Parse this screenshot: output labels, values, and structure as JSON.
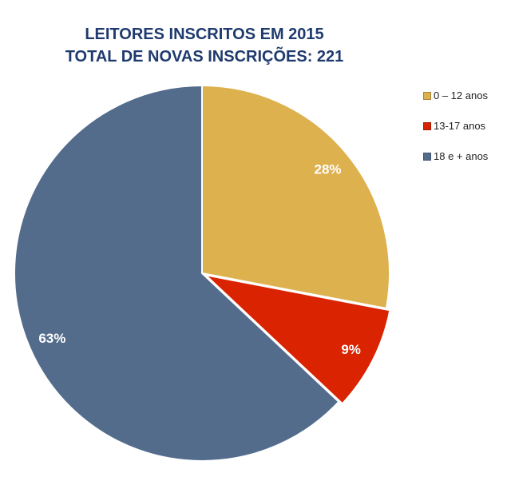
{
  "chart_data": {
    "type": "pie",
    "title": [
      "LEITORES INSCRITOS EM 2015",
      "TOTAL DE NOVAS INSCRIÇÕES: 221"
    ],
    "categories": [
      "0 – 12 anos",
      "13-17 anos",
      "18 e + anos"
    ],
    "values": [
      28,
      9,
      63
    ],
    "data_labels": [
      "28%",
      "9%",
      "63%"
    ],
    "colors": [
      "#DEB14F",
      "#DA2300",
      "#546C8C"
    ],
    "exploded": [
      false,
      true,
      false
    ],
    "legend_position": "right"
  }
}
